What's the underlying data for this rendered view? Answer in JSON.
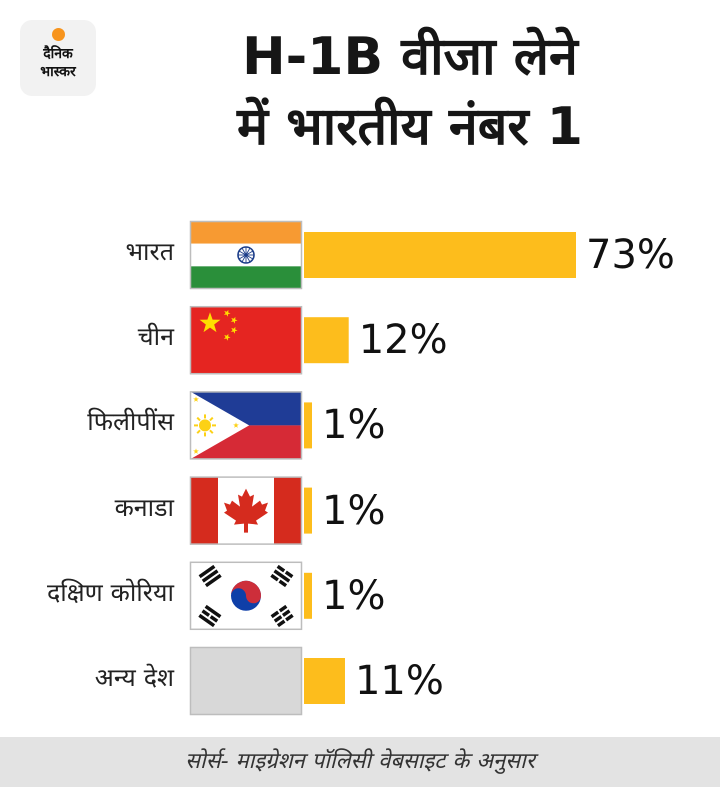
{
  "logo": {
    "line1": "दैनिक",
    "line2": "भास्कर"
  },
  "title": {
    "line1": "H-1B वीजा लेने",
    "line2": "में भारतीय नंबर 1"
  },
  "footer": {
    "source": "सोर्स- माइग्रेशन पॉलिसी वेबसाइट के अनुसार"
  },
  "colors": {
    "bar": "#fdbd1c",
    "footer_bg": "#e3e3e3",
    "logo_sun": "#f7941d"
  },
  "chart_data": {
    "type": "bar",
    "orientation": "horizontal",
    "title": "H-1B वीजा लेने में भारतीय नंबर 1",
    "categories": [
      "भारत",
      "चीन",
      "फिलीपींस",
      "कनाडा",
      "दक्षिण कोरिया",
      "अन्य देश"
    ],
    "values": [
      73,
      12,
      1,
      1,
      1,
      11
    ],
    "value_labels": [
      "73%",
      "12%",
      "1%",
      "1%",
      "1%",
      "11%"
    ],
    "flags": [
      "india-flag-icon",
      "china-flag-icon",
      "philippines-flag-icon",
      "canada-flag-icon",
      "south-korea-flag-icon",
      "other-countries-placeholder"
    ],
    "xlim": [
      0,
      73
    ],
    "grid": false,
    "legend": "none"
  }
}
